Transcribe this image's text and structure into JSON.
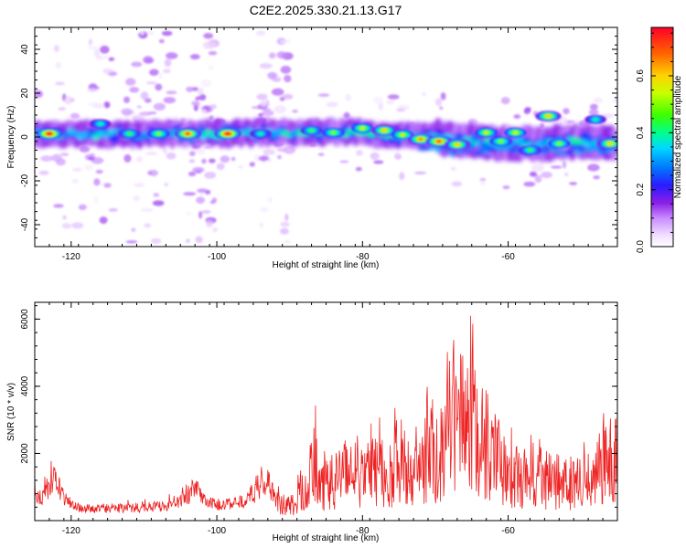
{
  "chart_data": [
    {
      "type": "heatmap",
      "title": "C2E2.2025.330.21.13.G17",
      "xlabel": "Height of straight line (km)",
      "ylabel": "Frequency (Hz)",
      "xlim": [
        -125,
        -45
      ],
      "ylim": [
        -50,
        50
      ],
      "xticks": [
        -120,
        -100,
        -80,
        -60
      ],
      "yticks": [
        -40,
        -20,
        0,
        20,
        40
      ],
      "colorbar": {
        "label": "Normalized spectral amplitude",
        "range": [
          0,
          0.77
        ],
        "ticks": [
          "0.0",
          "0.2",
          "0.4",
          "0.6"
        ],
        "tick_values": [
          0.0,
          0.2,
          0.4,
          0.6
        ]
      },
      "ridge": {
        "x": [
          -125,
          -118,
          -112,
          -106,
          -100,
          -94,
          -88,
          -82,
          -76,
          -70,
          -66,
          -60,
          -55,
          -50,
          -45
        ],
        "center_hz": [
          1,
          1.5,
          1,
          1.5,
          1.5,
          2,
          2,
          2.5,
          1,
          0,
          -2,
          -3,
          -3,
          -2,
          -3
        ]
      },
      "hotspots": [
        {
          "x": -123,
          "y": 1.5,
          "v": 0.77
        },
        {
          "x": -112,
          "y": 1.5,
          "v": 0.45
        },
        {
          "x": -108,
          "y": 1.5,
          "v": 0.5
        },
        {
          "x": -104,
          "y": 1.5,
          "v": 0.7
        },
        {
          "x": -98.5,
          "y": 1.5,
          "v": 0.77
        },
        {
          "x": -94,
          "y": 1.5,
          "v": 0.4
        },
        {
          "x": -87,
          "y": 3,
          "v": 0.45
        },
        {
          "x": -84,
          "y": 2,
          "v": 0.5
        },
        {
          "x": -80,
          "y": 4,
          "v": 0.55
        },
        {
          "x": -77,
          "y": 3,
          "v": 0.6
        },
        {
          "x": -74.5,
          "y": 1,
          "v": 0.55
        },
        {
          "x": -72,
          "y": -1,
          "v": 0.65
        },
        {
          "x": -69.5,
          "y": -2,
          "v": 0.7
        },
        {
          "x": -67,
          "y": -3.5,
          "v": 0.6
        },
        {
          "x": -63,
          "y": 2,
          "v": 0.55
        },
        {
          "x": -61,
          "y": -2,
          "v": 0.5
        },
        {
          "x": -59,
          "y": 2,
          "v": 0.55
        },
        {
          "x": -57,
          "y": -6,
          "v": 0.45
        },
        {
          "x": -54.5,
          "y": 9.5,
          "v": 0.6
        },
        {
          "x": -53,
          "y": -3,
          "v": 0.5
        },
        {
          "x": -48,
          "y": 8,
          "v": 0.4
        },
        {
          "x": -46,
          "y": -3,
          "v": 0.6
        },
        {
          "x": -116,
          "y": 6,
          "v": 0.4
        }
      ]
    },
    {
      "type": "line",
      "xlabel": "Height of straight line (km)",
      "ylabel": "SNR (10 * v/v)",
      "xlim": [
        -125,
        -45
      ],
      "ylim": [
        0,
        6500
      ],
      "xticks": [
        -120,
        -100,
        -80,
        -60
      ],
      "yticks": [
        2000,
        4000,
        6000
      ],
      "series": [
        {
          "name": "SNR",
          "color": "#ee2222",
          "x": [
            -125,
            -124,
            -123,
            -122,
            -121,
            -120,
            -118,
            -116,
            -114,
            -112,
            -110,
            -108,
            -106,
            -104,
            -103,
            -102,
            -101,
            -100,
            -98,
            -96,
            -94,
            -93,
            -92,
            -90,
            -88,
            -86.5,
            -86,
            -84,
            -82,
            -80,
            -78,
            -76,
            -75,
            -74,
            -72,
            -71,
            -70,
            -68.5,
            -67.5,
            -67,
            -66.3,
            -65.8,
            -65,
            -64,
            -63,
            -62,
            -61,
            -60,
            -58,
            -56,
            -54,
            -52,
            -50,
            -48,
            -47,
            -46,
            -45
          ],
          "values": [
            1200,
            1000,
            1500,
            1700,
            900,
            600,
            500,
            480,
            500,
            520,
            550,
            560,
            700,
            1000,
            1450,
            900,
            700,
            650,
            700,
            800,
            1350,
            1600,
            900,
            700,
            1500,
            3100,
            1800,
            2000,
            2700,
            2200,
            2600,
            2400,
            3400,
            2500,
            2600,
            3700,
            3000,
            3900,
            5900,
            5200,
            6400,
            4800,
            5300,
            3600,
            3900,
            3400,
            2700,
            2400,
            2200,
            2200,
            2000,
            1900,
            2000,
            2200,
            3000,
            2700,
            3600
          ]
        }
      ]
    }
  ]
}
